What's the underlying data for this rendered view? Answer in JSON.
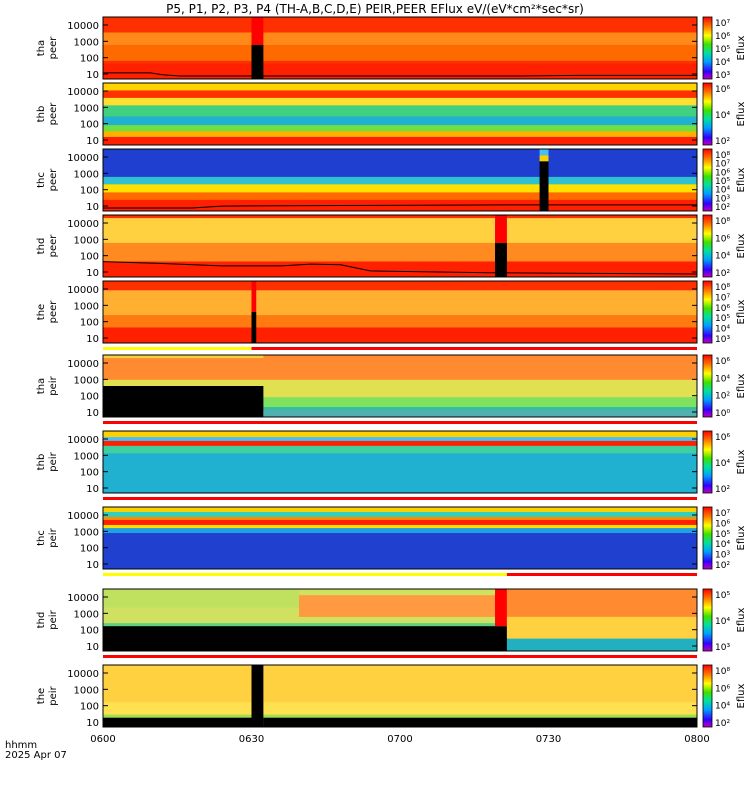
{
  "title": "P5, P1, P2, P3, P4 (TH-A,B,C,D,E) PEIR,PEER EFlux eV/(eV*cm²*sec*sr)",
  "footer": {
    "time_label": "hhmm",
    "date_label": "2025 Apr 07"
  },
  "x_ticks": [
    "0600",
    "0630",
    "0700",
    "0730",
    "0800"
  ],
  "colorbar_label": "Eflux",
  "colors": {
    "red": "#ff0000",
    "black": "#000000",
    "white": "#ffffff"
  },
  "chart_data": [
    {
      "type": "heatmap",
      "probe_label": "tha",
      "species_label": "peer",
      "y_ticks": [
        "10000",
        "1000",
        "100",
        "10"
      ],
      "x_range": [
        "0600",
        "0800"
      ],
      "y_scale": "log",
      "cbar_ticks": [
        "10⁷",
        "10⁶",
        "10⁵",
        "10⁴",
        "10³"
      ],
      "gaps": [
        [
          0.25,
          0.27
        ]
      ],
      "spacecraft_potential": [
        [
          0,
          0.05
        ],
        [
          0.08,
          0.05
        ],
        [
          0.1,
          0.02
        ],
        [
          0.13,
          0.0
        ],
        [
          0.7,
          0.0
        ],
        [
          0.8,
          0.01
        ],
        [
          1,
          0.01
        ]
      ]
    },
    {
      "type": "heatmap",
      "probe_label": "thb",
      "species_label": "peer",
      "y_ticks": [
        "10000",
        "1000",
        "100",
        "10"
      ],
      "x_range": [
        "0600",
        "0800"
      ],
      "y_scale": "log",
      "cbar_ticks": [
        "10⁶",
        "10⁴",
        "10²"
      ]
    },
    {
      "type": "heatmap",
      "probe_label": "thc",
      "species_label": "peer",
      "y_ticks": [
        "10000",
        "1000",
        "100",
        "10"
      ],
      "x_range": [
        "0600",
        "0800"
      ],
      "y_scale": "log",
      "cbar_ticks": [
        "10⁸",
        "10⁷",
        "10⁶",
        "10⁵",
        "10⁴",
        "10³",
        "10²"
      ],
      "gaps": [
        [
          0.735,
          0.75
        ]
      ],
      "spacecraft_potential": [
        [
          0,
          0.0
        ],
        [
          0.15,
          0.0
        ],
        [
          0.2,
          0.03
        ],
        [
          0.4,
          0.04
        ],
        [
          0.7,
          0.05
        ],
        [
          1,
          0.05
        ]
      ]
    },
    {
      "type": "heatmap",
      "probe_label": "thd",
      "species_label": "peer",
      "y_ticks": [
        "10000",
        "1000",
        "100",
        "10"
      ],
      "x_range": [
        "0600",
        "0800"
      ],
      "y_scale": "log",
      "cbar_ticks": [
        "10⁸",
        "10⁶",
        "10⁴",
        "10²"
      ],
      "gaps": [
        [
          0.66,
          0.68
        ]
      ],
      "spacecraft_potential": [
        [
          0,
          0.2
        ],
        [
          0.1,
          0.17
        ],
        [
          0.2,
          0.13
        ],
        [
          0.3,
          0.13
        ],
        [
          0.35,
          0.16
        ],
        [
          0.4,
          0.15
        ],
        [
          0.45,
          0.05
        ],
        [
          0.65,
          0.02
        ],
        [
          1,
          0.0
        ]
      ]
    },
    {
      "type": "heatmap",
      "probe_label": "the",
      "species_label": "peer",
      "y_ticks": [
        "10000",
        "1000",
        "100",
        "10"
      ],
      "x_range": [
        "0600",
        "0800"
      ],
      "y_scale": "log",
      "cbar_ticks": [
        "10⁸",
        "10⁷",
        "10⁶",
        "10⁵",
        "10⁴",
        "10³"
      ],
      "gaps": [
        [
          0.25,
          0.258
        ]
      ]
    },
    {
      "type": "heatmap",
      "probe_label": "tha",
      "species_label": "peir",
      "y_ticks": [
        "10000",
        "1000",
        "100",
        "10"
      ],
      "x_range": [
        "0600",
        "0800"
      ],
      "y_scale": "log",
      "cbar_ticks": [
        "10⁶",
        "10⁴",
        "10²",
        "10⁰"
      ]
    },
    {
      "type": "heatmap",
      "probe_label": "thb",
      "species_label": "peir",
      "y_ticks": [
        "10000",
        "1000",
        "100",
        "10"
      ],
      "x_range": [
        "0600",
        "0800"
      ],
      "y_scale": "log",
      "cbar_ticks": [
        "10⁶",
        "10⁴",
        "10²"
      ]
    },
    {
      "type": "heatmap",
      "probe_label": "thc",
      "species_label": "peir",
      "y_ticks": [
        "10000",
        "1000",
        "100",
        "10"
      ],
      "x_range": [
        "0600",
        "0800"
      ],
      "y_scale": "log",
      "cbar_ticks": [
        "10⁷",
        "10⁶",
        "10⁵",
        "10⁴",
        "10³",
        "10²"
      ]
    },
    {
      "type": "heatmap",
      "probe_label": "thd",
      "species_label": "peir",
      "y_ticks": [
        "10000",
        "1000",
        "100",
        "10"
      ],
      "x_range": [
        "0600",
        "0800"
      ],
      "y_scale": "log",
      "cbar_ticks": [
        "10⁵",
        "10⁴",
        "10³"
      ]
    },
    {
      "type": "heatmap",
      "probe_label": "the",
      "species_label": "peir",
      "y_ticks": [
        "10000",
        "1000",
        "100",
        "10"
      ],
      "x_range": [
        "0600",
        "0800"
      ],
      "y_scale": "log",
      "cbar_ticks": [
        "10⁸",
        "10⁶",
        "10⁴",
        "10²"
      ],
      "gaps": [
        [
          0.25,
          0.27
        ]
      ]
    }
  ]
}
